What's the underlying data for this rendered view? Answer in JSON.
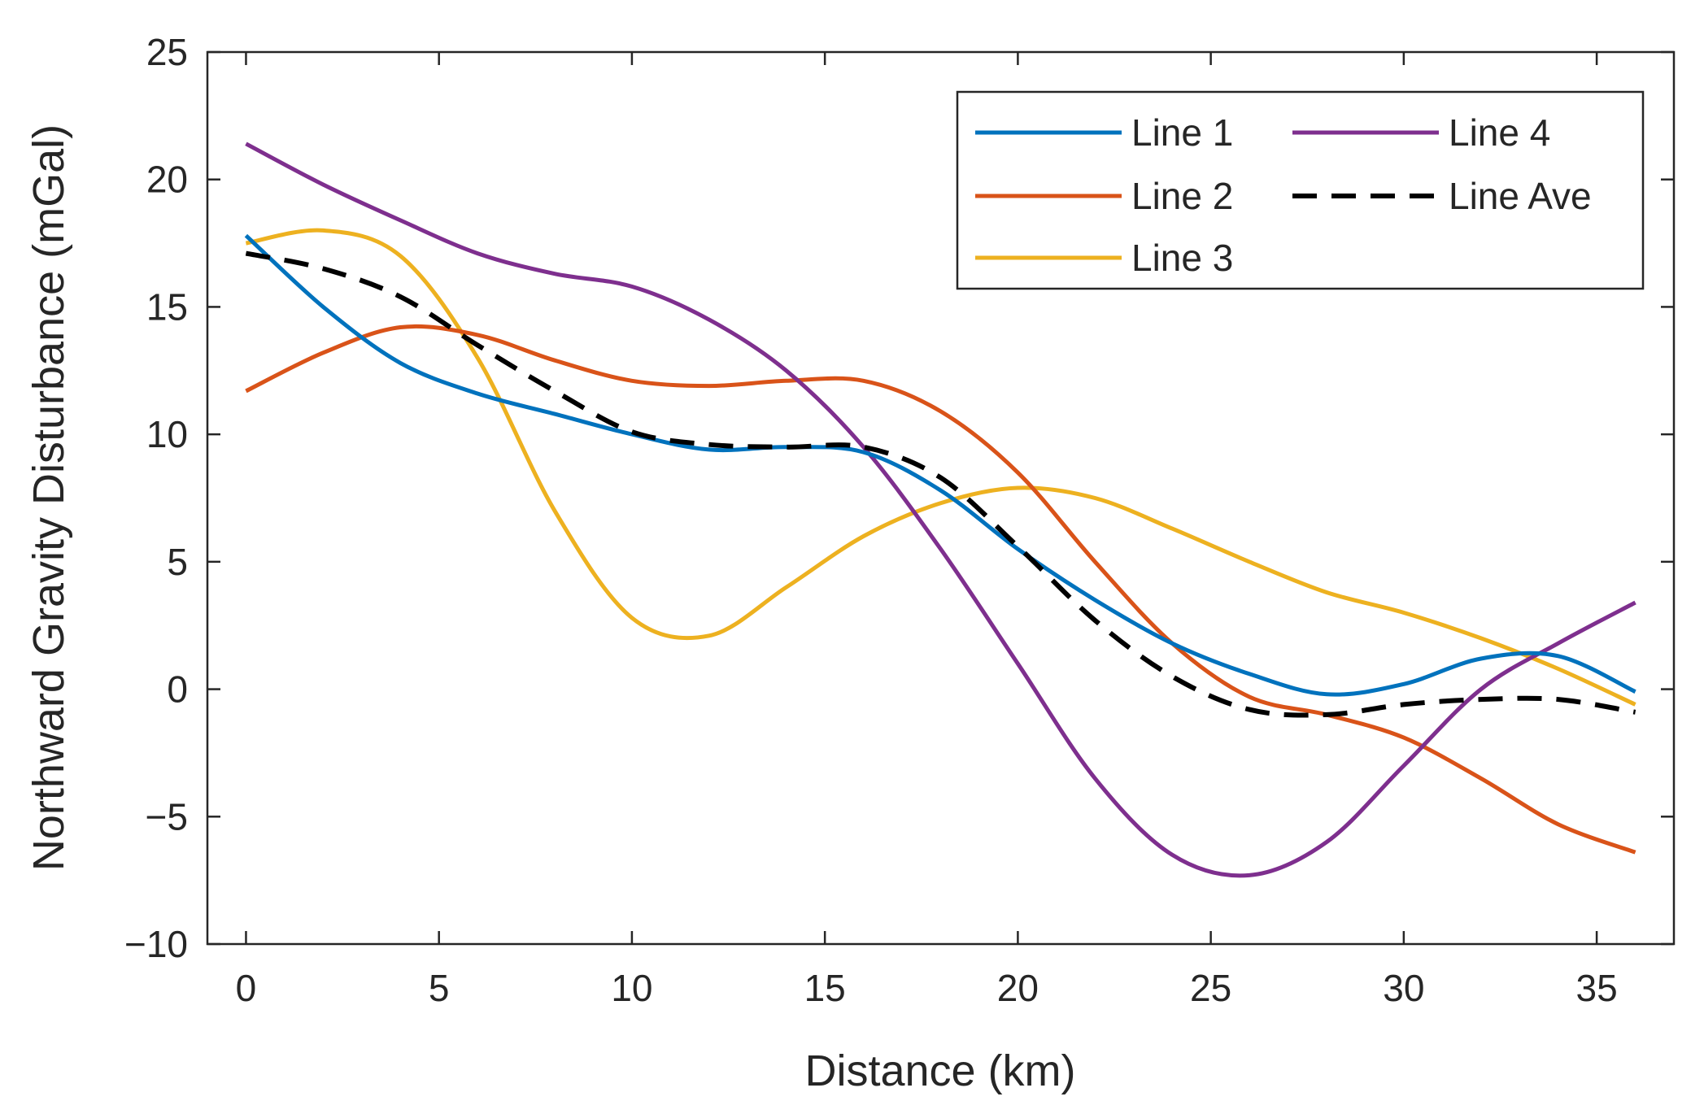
{
  "chart_data": {
    "type": "line",
    "title": "",
    "xlabel": "Distance (km)",
    "ylabel": "Northward Gravity Disturbance (mGal)",
    "xlim": [
      -1,
      37
    ],
    "ylim": [
      -10,
      25
    ],
    "xticks": [
      0,
      5,
      10,
      15,
      20,
      25,
      30,
      35
    ],
    "yticks": [
      -10,
      -5,
      0,
      5,
      10,
      15,
      20,
      25
    ],
    "xtick_labels": [
      "0",
      "5",
      "10",
      "15",
      "20",
      "25",
      "30",
      "35"
    ],
    "ytick_labels": [
      "−10",
      "−5",
      "0",
      "5",
      "10",
      "15",
      "20",
      "25"
    ],
    "grid": false,
    "legend_position": "top-right",
    "x": [
      0,
      2,
      4,
      6,
      8,
      10,
      12,
      14,
      16,
      18,
      20,
      22,
      24,
      26,
      28,
      30,
      32,
      34,
      36
    ],
    "series": [
      {
        "name": "Line 1",
        "color": "#0072BD",
        "dash": "solid",
        "values": [
          17.8,
          15.0,
          12.8,
          11.6,
          10.8,
          10.0,
          9.4,
          9.5,
          9.3,
          7.8,
          5.5,
          3.5,
          1.8,
          0.6,
          -0.2,
          0.2,
          1.2,
          1.3,
          -0.1
        ]
      },
      {
        "name": "Line 2",
        "color": "#D95319",
        "dash": "solid",
        "values": [
          11.7,
          13.2,
          14.2,
          13.9,
          12.9,
          12.1,
          11.9,
          12.1,
          12.1,
          10.9,
          8.5,
          5.0,
          1.8,
          -0.3,
          -1.0,
          -1.9,
          -3.5,
          -5.3,
          -6.4
        ]
      },
      {
        "name": "Line 3",
        "color": "#EDB120",
        "dash": "solid",
        "values": [
          17.5,
          18.0,
          17.0,
          13.0,
          7.0,
          2.8,
          2.1,
          4.0,
          6.0,
          7.3,
          7.9,
          7.5,
          6.3,
          5.0,
          3.8,
          3.0,
          2.0,
          0.8,
          -0.6
        ]
      },
      {
        "name": "Line 4",
        "color": "#7E2F8E",
        "dash": "solid",
        "values": [
          21.4,
          19.8,
          18.4,
          17.1,
          16.3,
          15.8,
          14.5,
          12.5,
          9.5,
          5.5,
          1.0,
          -3.5,
          -6.5,
          -7.3,
          -6.0,
          -3.0,
          0.0,
          1.8,
          3.4
        ]
      },
      {
        "name": "Line Ave",
        "color": "#000000",
        "dash": "dashed",
        "values": [
          17.1,
          16.5,
          15.4,
          13.5,
          11.7,
          10.1,
          9.6,
          9.5,
          9.5,
          8.3,
          5.6,
          2.7,
          0.5,
          -0.8,
          -1.0,
          -0.6,
          -0.4,
          -0.4,
          -0.9
        ]
      }
    ]
  }
}
